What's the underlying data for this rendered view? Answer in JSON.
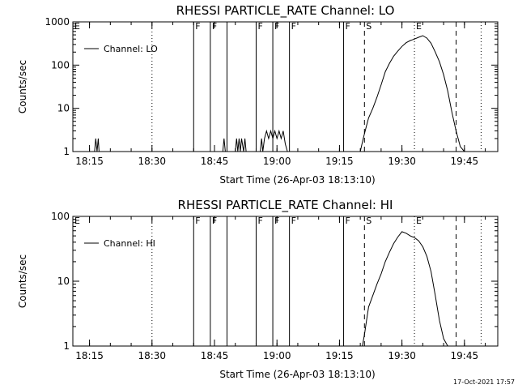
{
  "footer": "17-Oct-2021 17:57",
  "chart_data": [
    {
      "type": "line",
      "title": "RHESSI PARTICLE_RATE Channel: LO",
      "xlabel": "Start Time (26-Apr-03 18:13:10)",
      "ylabel": "Counts/sec",
      "legend": {
        "label": "Channel: LO",
        "placement": "top-left"
      },
      "y_scale": "log",
      "ylim": [
        1,
        1000
      ],
      "xlim": [
        "18:11",
        "19:53"
      ],
      "x_ticks": [
        "18:15",
        "18:30",
        "18:45",
        "19:00",
        "19:15",
        "19:30",
        "19:45"
      ],
      "y_ticks": [
        "1",
        "10",
        "100",
        "1000"
      ],
      "markers": [
        {
          "time": "18:40",
          "label": "F",
          "style": "solid"
        },
        {
          "time": "18:44",
          "label": "F",
          "style": "solid"
        },
        {
          "time": "18:48",
          "label": "",
          "style": "solid"
        },
        {
          "time": "18:55",
          "label": "F",
          "style": "solid"
        },
        {
          "time": "18:59",
          "label": "F",
          "style": "solid"
        },
        {
          "time": "19:03",
          "label": "F",
          "style": "solid"
        },
        {
          "time": "19:16",
          "label": "F",
          "style": "solid"
        },
        {
          "time": "19:21",
          "label": "S",
          "style": "dashed"
        },
        {
          "time": "19:33",
          "label": "E",
          "style": "dotted"
        },
        {
          "time": "19:43",
          "label": "",
          "style": "dashed"
        },
        {
          "time": "18:11",
          "label": "E",
          "style": "none"
        },
        {
          "time": "18:30",
          "label": "",
          "style": "dotted"
        },
        {
          "time": "19:49",
          "label": "",
          "style": "dotted"
        }
      ],
      "series": [
        {
          "name": "Channel: LO",
          "x": [
            "18:16.2",
            "18:16.5",
            "18:16.8",
            "18:17.1",
            "18:17.3",
            "18:47.0",
            "18:47.3",
            "18:47.6",
            "18:50.0",
            "18:50.3",
            "18:50.6",
            "18:50.9",
            "18:51.2",
            "18:51.5",
            "18:52.0",
            "18:52.3",
            "18:52.6",
            "18:56.0",
            "18:56.3",
            "18:56.6",
            "18:57.0",
            "18:57.5",
            "18:58.0",
            "18:58.5",
            "18:59.0",
            "18:59.5",
            "19:00.0",
            "19:00.5",
            "19:01.0",
            "19:01.5",
            "19:02.0",
            "19:02.5",
            "19:20.0",
            "19:20.7",
            "19:21.5",
            "19:22.0",
            "19:23.0",
            "19:24.0",
            "19:25.0",
            "19:26.0",
            "19:27.0",
            "19:28.0",
            "19:29.0",
            "19:30.0",
            "19:31.0",
            "19:32.0",
            "19:33.0",
            "19:34.0",
            "19:35.0",
            "19:36.0",
            "19:37.0",
            "19:38.0",
            "19:39.0",
            "19:40.0",
            "19:41.0",
            "19:42.0",
            "19:43.0",
            "19:44.0",
            "19:45.0"
          ],
          "y": [
            1,
            2,
            1,
            2,
            1,
            1,
            2,
            1,
            1,
            2,
            1,
            2,
            1,
            2,
            1,
            2,
            1,
            1,
            2,
            1,
            2,
            3,
            2,
            3,
            2,
            3,
            2,
            3,
            2,
            3,
            1.5,
            1,
            1,
            2,
            4,
            6,
            10,
            18,
            35,
            70,
            110,
            160,
            210,
            270,
            330,
            370,
            400,
            440,
            480,
            420,
            320,
            200,
            120,
            60,
            25,
            8,
            3,
            1.3,
            1
          ]
        }
      ]
    },
    {
      "type": "line",
      "title": "RHESSI PARTICLE_RATE Channel: HI",
      "xlabel": "Start Time (26-Apr-03 18:13:10)",
      "ylabel": "Counts/sec",
      "legend": {
        "label": "Channel: HI",
        "placement": "top-left"
      },
      "y_scale": "log",
      "ylim": [
        1,
        100
      ],
      "xlim": [
        "18:11",
        "19:53"
      ],
      "x_ticks": [
        "18:15",
        "18:30",
        "18:45",
        "19:00",
        "19:15",
        "19:30",
        "19:45"
      ],
      "y_ticks": [
        "1",
        "10",
        "100"
      ],
      "markers": [
        {
          "time": "18:40",
          "label": "F",
          "style": "solid"
        },
        {
          "time": "18:44",
          "label": "F",
          "style": "solid"
        },
        {
          "time": "18:48",
          "label": "",
          "style": "solid"
        },
        {
          "time": "18:55",
          "label": "F",
          "style": "solid"
        },
        {
          "time": "18:59",
          "label": "F",
          "style": "solid"
        },
        {
          "time": "19:03",
          "label": "F",
          "style": "solid"
        },
        {
          "time": "19:16",
          "label": "F",
          "style": "solid"
        },
        {
          "time": "19:21",
          "label": "S",
          "style": "dashed"
        },
        {
          "time": "19:33",
          "label": "E",
          "style": "dotted"
        },
        {
          "time": "19:43",
          "label": "",
          "style": "dashed"
        },
        {
          "time": "18:11",
          "label": "E",
          "style": "none"
        },
        {
          "time": "18:30",
          "label": "",
          "style": "dotted"
        },
        {
          "time": "19:49",
          "label": "",
          "style": "dotted"
        }
      ],
      "series": [
        {
          "name": "Channel: HI",
          "x": [
            "19:20.5",
            "19:21.0",
            "19:21.5",
            "19:22.0",
            "19:23.0",
            "19:24.0",
            "19:25.0",
            "19:26.0",
            "19:27.0",
            "19:28.0",
            "19:29.0",
            "19:30.0",
            "19:31.0",
            "19:32.0",
            "19:33.0",
            "19:34.0",
            "19:35.0",
            "19:36.0",
            "19:37.0",
            "19:38.0",
            "19:39.0",
            "19:40.0",
            "19:41.0"
          ],
          "y": [
            1,
            1.5,
            2.5,
            4,
            6,
            9,
            13,
            20,
            28,
            38,
            48,
            58,
            55,
            50,
            47,
            42,
            34,
            24,
            14,
            6,
            2.5,
            1.3,
            1
          ]
        }
      ]
    }
  ]
}
